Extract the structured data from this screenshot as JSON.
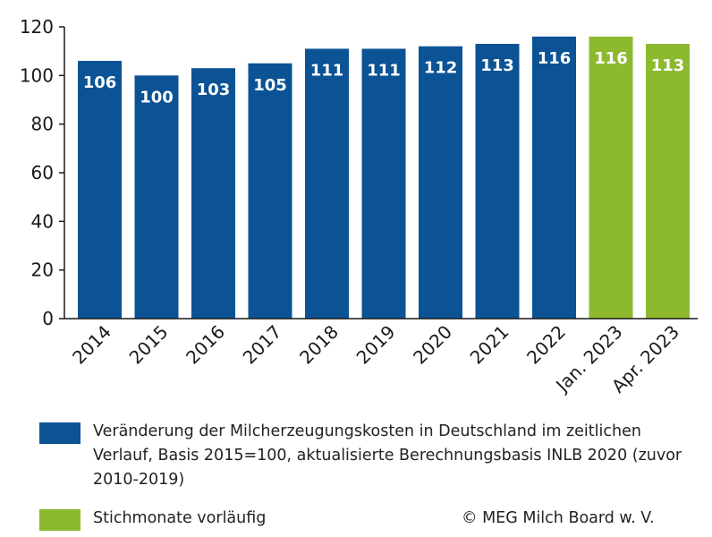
{
  "chart_data": {
    "type": "bar",
    "title": "",
    "xlabel": "",
    "ylabel": "",
    "ylim": [
      0,
      120
    ],
    "yticks": [
      0,
      20,
      40,
      60,
      80,
      100,
      120
    ],
    "grid": false,
    "categories": [
      "2014",
      "2015",
      "2016",
      "2017",
      "2018",
      "2019",
      "2020",
      "2021",
      "2022",
      "Jan. 2023",
      "Apr. 2023"
    ],
    "values": [
      106,
      100,
      103,
      105,
      111,
      111,
      112,
      113,
      116,
      116,
      113
    ],
    "bar_groups": [
      "base",
      "base",
      "base",
      "base",
      "base",
      "base",
      "base",
      "base",
      "base",
      "provisional",
      "provisional"
    ],
    "colors": {
      "base": "#0b5394",
      "provisional": "#8db92e"
    },
    "legend_placement": "bottom",
    "legend": [
      {
        "group": "base",
        "label": "Veränderung der Milcherzeugungskosten in Deutschland im zeitlichen Verlauf, Basis 2015=100, aktualisierte Berechnungsbasis INLB 2020 (zuvor 2010-2019)"
      },
      {
        "group": "provisional",
        "label": "Stichmonate vorläufig"
      }
    ]
  },
  "footer": {
    "copyright": "© MEG Milch Board w. V."
  }
}
